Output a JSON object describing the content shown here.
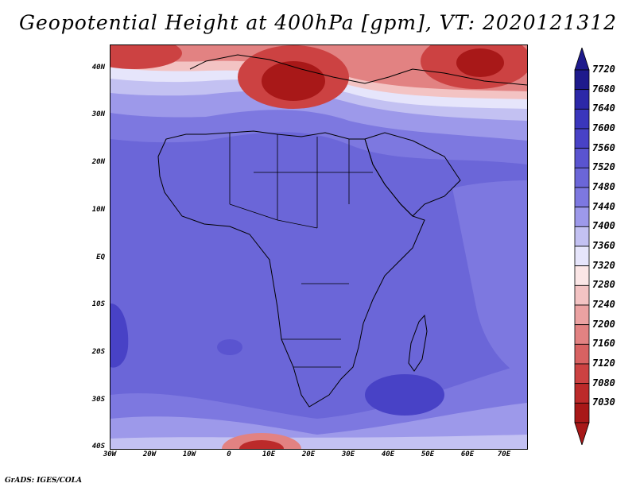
{
  "title": "Geopotential Height at 400hPa [gpm], VT: 2020121312",
  "lat_labels": [
    "40N",
    "30N",
    "20N",
    "10N",
    "EQ",
    "10S",
    "20S",
    "30S",
    "40S"
  ],
  "lon_labels": [
    "30W",
    "20W",
    "10W",
    "0",
    "10E",
    "20E",
    "30E",
    "40E",
    "50E",
    "60E",
    "70E"
  ],
  "colorbar": {
    "levels": [
      "7720",
      "7680",
      "7640",
      "7600",
      "7560",
      "7520",
      "7480",
      "7440",
      "7400",
      "7360",
      "7320",
      "7280",
      "7240",
      "7200",
      "7160",
      "7120",
      "7080",
      "7030"
    ],
    "colors": [
      "#1e1a8c",
      "#2c28a8",
      "#3a36bc",
      "#4842c6",
      "#5a54d0",
      "#6b66d8",
      "#7d78e0",
      "#9d99ea",
      "#c3c1f2",
      "#e6e5fb",
      "#fbe6e6",
      "#f3c3c3",
      "#eba2a2",
      "#e28282",
      "#d86262",
      "#cc4242",
      "#bc2a2a",
      "#a81818"
    ],
    "top_color": "#1e1a8c",
    "bottom_color": "#a81818"
  },
  "map": {
    "extent_lon": [
      -30,
      75
    ],
    "extent_lat": [
      -40,
      45
    ],
    "background_color": "#6b66d8"
  },
  "credit": "GrADS: IGES/COLA"
}
